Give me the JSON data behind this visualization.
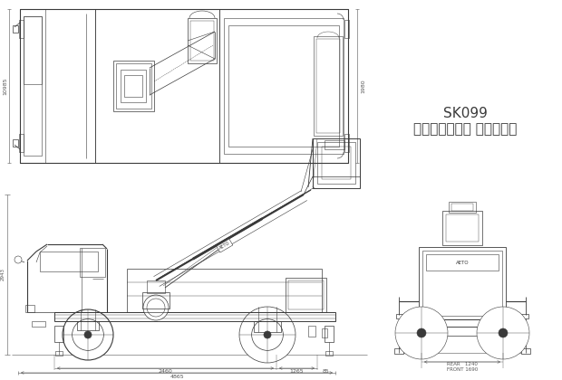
{
  "bg_color": "#ffffff",
  "line_color": "#3a3a3a",
  "dim_color": "#555555",
  "title1": "SK099",
  "title2": "アイチコーボ゜ レーション",
  "dim_top_left": "10985",
  "dim_top_right": "1980",
  "dim_side_height": "2943",
  "dim_bottom_total": "4865",
  "dim_bottom_mid": "2460",
  "dim_bottom_right1": "1265",
  "dim_bottom_right2": "85",
  "dim_rear_width1": "REAR   1240",
  "dim_rear_width2": "FRONT 1690"
}
